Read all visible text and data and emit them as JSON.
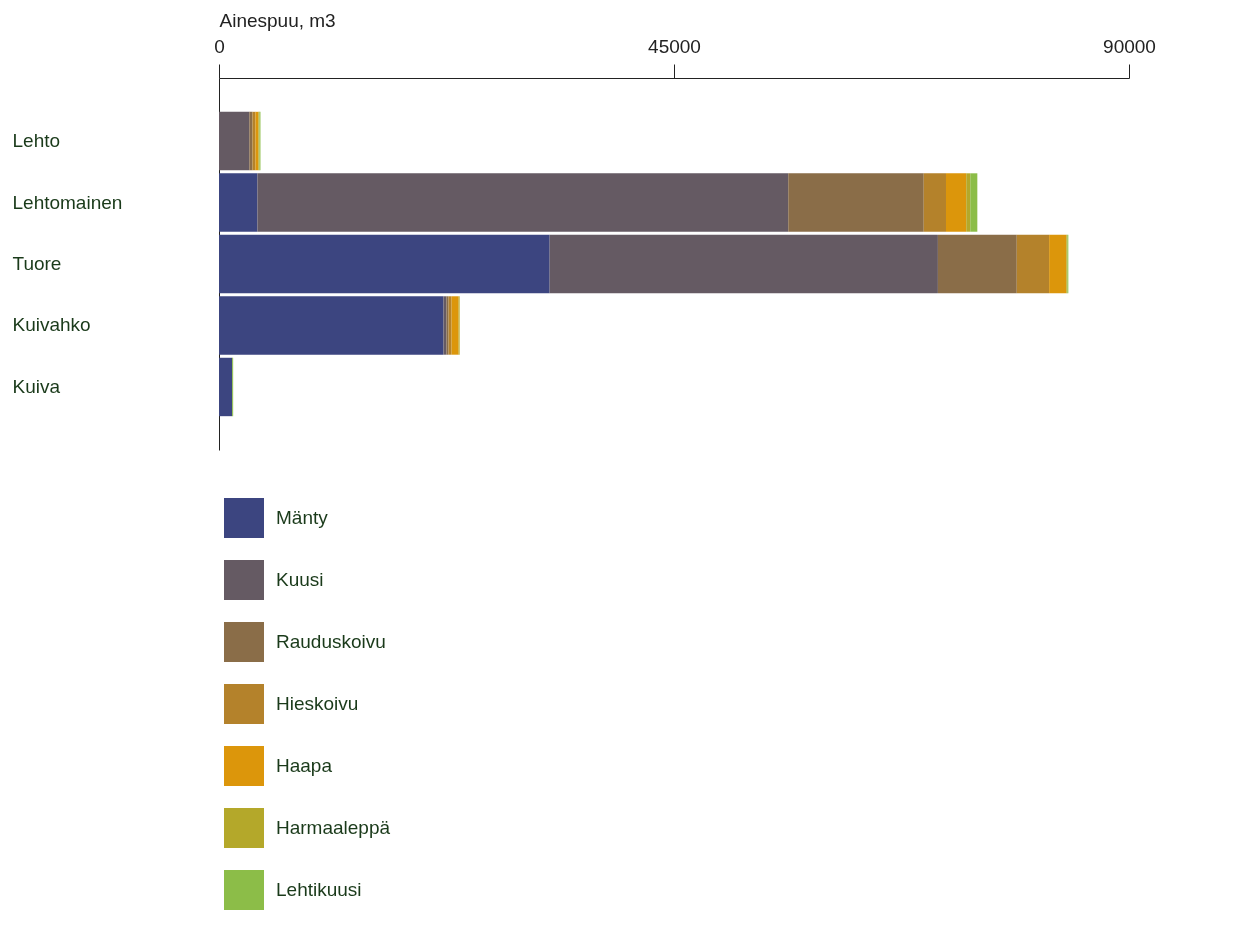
{
  "chart_data": {
    "type": "bar",
    "orientation": "horizontal",
    "stacked": true,
    "xlabel": "Ainespuu, m3",
    "categories": [
      "Lehto",
      "Lehtomainen",
      "Tuore",
      "Kuivahko",
      "Kuiva"
    ],
    "series": [
      {
        "name": "Mänty",
        "color": "#3c4580",
        "values": [
          0,
          3800,
          32700,
          22200,
          1300
        ]
      },
      {
        "name": "Kuusi",
        "color": "#655a63",
        "values": [
          3000,
          52500,
          38400,
          300,
          0
        ]
      },
      {
        "name": "Rauduskoivu",
        "color": "#8a6d48",
        "values": [
          300,
          13400,
          7800,
          200,
          0
        ]
      },
      {
        "name": "Hieskoivu",
        "color": "#b4822b",
        "values": [
          300,
          2200,
          3200,
          300,
          0
        ]
      },
      {
        "name": "Haapa",
        "color": "#dc960b",
        "values": [
          300,
          2000,
          1700,
          700,
          0
        ]
      },
      {
        "name": "Harmaaleppä",
        "color": "#b4a82a",
        "values": [
          100,
          400,
          100,
          100,
          0
        ]
      },
      {
        "name": "Lehtikuusi",
        "color": "#8cbd48",
        "values": [
          100,
          700,
          100,
          0,
          100
        ]
      }
    ],
    "xlim": [
      0,
      90000
    ],
    "xticks": [
      0,
      45000,
      90000
    ],
    "grid": false,
    "legend": "bottom left"
  }
}
